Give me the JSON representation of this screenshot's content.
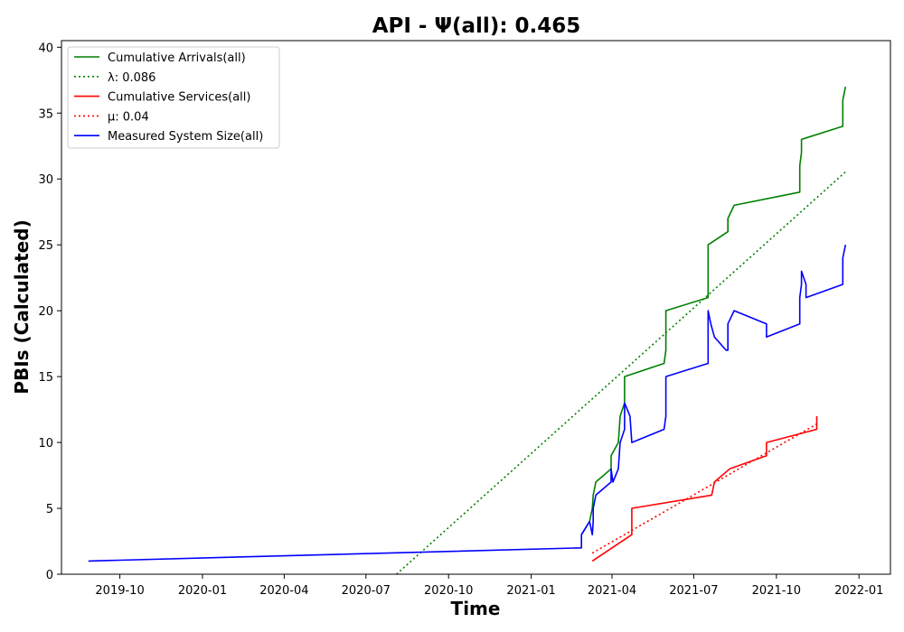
{
  "chart_data": {
    "type": "line",
    "title": "API -  Ψ(all): 0.465",
    "xlabel": "Time",
    "ylabel": "PBIs (Calculated)",
    "xlim": [
      "2019-07-28",
      "2022-02-05"
    ],
    "ylim": [
      0,
      40.5
    ],
    "yticks": [
      0,
      5,
      10,
      15,
      20,
      25,
      30,
      35,
      40
    ],
    "xticks": [
      "2019-10",
      "2020-01",
      "2020-04",
      "2020-07",
      "2020-10",
      "2021-01",
      "2021-04",
      "2021-07",
      "2021-10",
      "2022-01"
    ],
    "grid": false,
    "legend_position": "top-left",
    "legend": [
      "Cumulative Arrivals(all)",
      "λ: 0.086",
      "Cumulative Services(all)",
      "μ: 0.04",
      "Measured System Size(all)"
    ],
    "series": [
      {
        "name": "Cumulative Arrivals(all)",
        "color": "#008000",
        "style": "solid",
        "points": [
          [
            "2021-02-26",
            3
          ],
          [
            "2021-03-07",
            4
          ],
          [
            "2021-03-10",
            5
          ],
          [
            "2021-03-11",
            6
          ],
          [
            "2021-03-14",
            7
          ],
          [
            "2021-03-31",
            8
          ],
          [
            "2021-03-31",
            9
          ],
          [
            "2021-04-08",
            10
          ],
          [
            "2021-04-10",
            12
          ],
          [
            "2021-04-15",
            13
          ],
          [
            "2021-04-15",
            15
          ],
          [
            "2021-05-29",
            16
          ],
          [
            "2021-05-31",
            17
          ],
          [
            "2021-05-31",
            20
          ],
          [
            "2021-07-17",
            21
          ],
          [
            "2021-07-17",
            25
          ],
          [
            "2021-08-08",
            26
          ],
          [
            "2021-08-08",
            27
          ],
          [
            "2021-08-15",
            28
          ],
          [
            "2021-10-27",
            29
          ],
          [
            "2021-10-27",
            31
          ],
          [
            "2021-10-29",
            32
          ],
          [
            "2021-10-29",
            33
          ],
          [
            "2021-12-14",
            34
          ],
          [
            "2021-12-14",
            36
          ],
          [
            "2021-12-17",
            37
          ]
        ]
      },
      {
        "name": "λ: 0.086",
        "color": "#008000",
        "style": "dotted",
        "points": [
          [
            "2020-08-04",
            0
          ],
          [
            "2021-12-18",
            30.6
          ]
        ]
      },
      {
        "name": "Cumulative Services(all)",
        "color": "#ff0000",
        "style": "solid",
        "points": [
          [
            "2021-03-10",
            1
          ],
          [
            "2021-04-23",
            3
          ],
          [
            "2021-04-23",
            5
          ],
          [
            "2021-07-21",
            6
          ],
          [
            "2021-07-24",
            7
          ],
          [
            "2021-08-10",
            8
          ],
          [
            "2021-09-20",
            9
          ],
          [
            "2021-09-20",
            10
          ],
          [
            "2021-11-15",
            11
          ],
          [
            "2021-11-15",
            12
          ]
        ]
      },
      {
        "name": "μ: 0.04",
        "color": "#ff0000",
        "style": "dotted",
        "points": [
          [
            "2021-03-10",
            1.6
          ],
          [
            "2021-11-15",
            11.4
          ]
        ]
      },
      {
        "name": "Measured System Size(all)",
        "color": "#0000ff",
        "style": "solid",
        "points": [
          [
            "2019-08-27",
            1
          ],
          [
            "2021-02-26",
            2
          ],
          [
            "2021-02-26",
            3
          ],
          [
            "2021-03-07",
            4
          ],
          [
            "2021-03-10",
            3
          ],
          [
            "2021-03-11",
            4
          ],
          [
            "2021-03-11",
            5
          ],
          [
            "2021-03-14",
            6
          ],
          [
            "2021-03-31",
            7
          ],
          [
            "2021-03-31",
            8
          ],
          [
            "2021-04-02",
            7
          ],
          [
            "2021-04-08",
            8
          ],
          [
            "2021-04-10",
            10
          ],
          [
            "2021-04-15",
            11
          ],
          [
            "2021-04-15",
            13
          ],
          [
            "2021-04-21",
            12
          ],
          [
            "2021-04-23",
            10
          ],
          [
            "2021-05-29",
            11
          ],
          [
            "2021-05-31",
            12
          ],
          [
            "2021-05-31",
            15
          ],
          [
            "2021-07-17",
            16
          ],
          [
            "2021-07-17",
            20
          ],
          [
            "2021-07-20",
            19
          ],
          [
            "2021-07-24",
            18
          ],
          [
            "2021-08-06",
            17
          ],
          [
            "2021-08-08",
            17
          ],
          [
            "2021-08-08",
            19
          ],
          [
            "2021-08-15",
            20
          ],
          [
            "2021-09-20",
            19
          ],
          [
            "2021-09-20",
            18
          ],
          [
            "2021-10-27",
            19
          ],
          [
            "2021-10-27",
            21
          ],
          [
            "2021-10-29",
            22
          ],
          [
            "2021-10-29",
            23
          ],
          [
            "2021-11-03",
            22
          ],
          [
            "2021-11-03",
            21
          ],
          [
            "2021-12-14",
            22
          ],
          [
            "2021-12-14",
            24
          ],
          [
            "2021-12-17",
            25
          ]
        ]
      }
    ]
  }
}
